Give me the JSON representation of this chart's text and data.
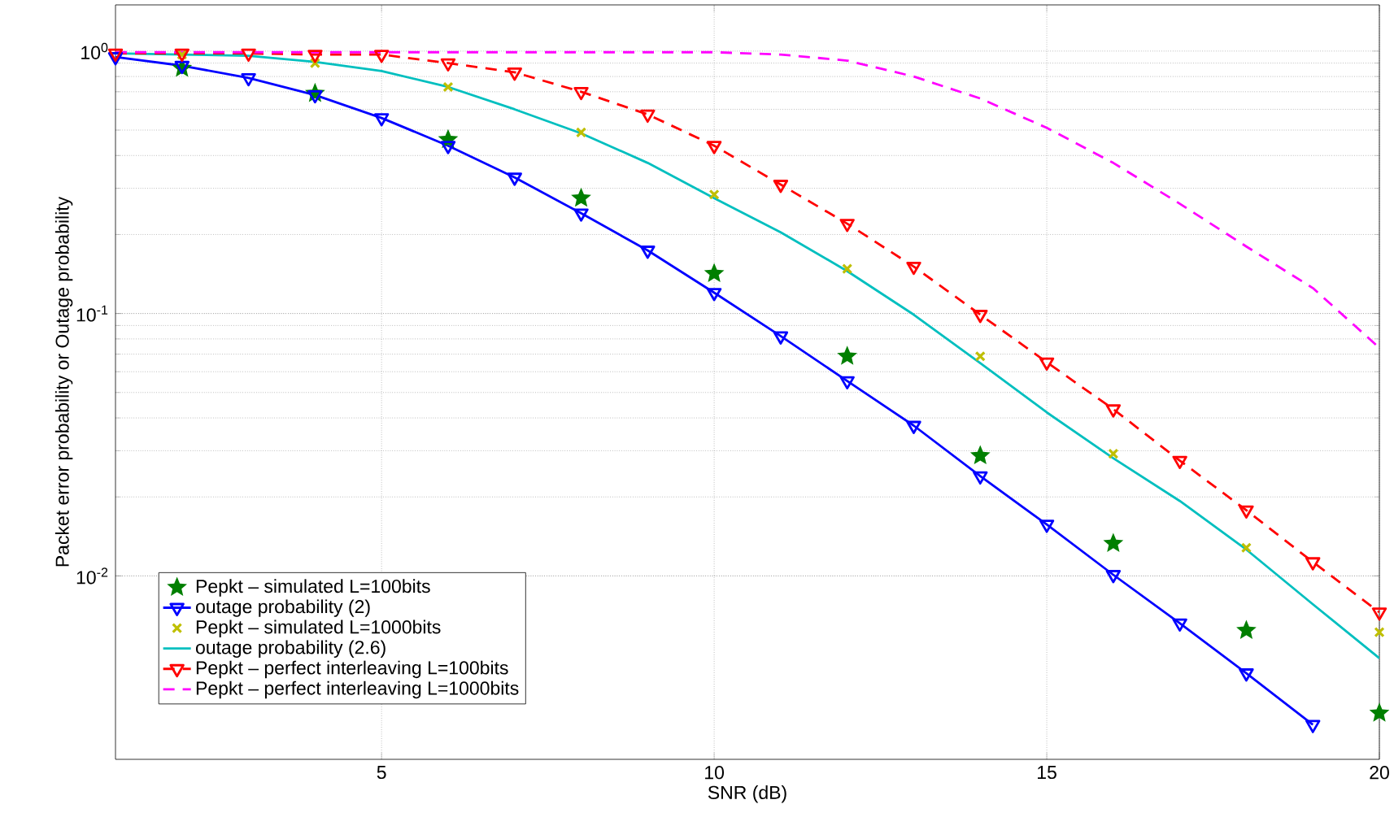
{
  "chart_data": {
    "type": "line",
    "xlabel": "SNR (dB)",
    "ylabel": "Packet error probability or Outage probability",
    "log": "y",
    "grid": true,
    "legend": "bottom left",
    "xlim": [
      1,
      20
    ],
    "xticks": [
      5,
      10,
      15,
      20
    ],
    "ylim": [
      0.002,
      1.5
    ],
    "yticks": [
      {
        "value": 0.01,
        "label": "10$^{-2}$"
      },
      {
        "value": 0.1,
        "label": "10$^{-1}$"
      },
      {
        "value": 1,
        "label": "10$^{0}$"
      }
    ],
    "series": [
      {
        "name": "Pepkt – simulated L=100bits",
        "type": "scatter",
        "marker": "star",
        "color": "#007f00",
        "x": [
          2,
          4,
          6,
          8,
          10,
          12,
          14,
          16,
          18,
          20
        ],
        "values": [
          0.86,
          0.69,
          0.46,
          0.275,
          0.142,
          0.0687,
          0.0287,
          0.0133,
          0.0062,
          0.003
        ]
      },
      {
        "name": "outage probability (2)",
        "type": "line",
        "marker": "triangle",
        "line_style": "solid",
        "color": "#0000ff",
        "x": [
          1,
          2,
          3,
          4,
          5,
          6,
          7,
          8,
          9,
          10,
          11,
          12,
          13,
          14,
          15,
          16,
          17,
          18,
          19
        ],
        "values": [
          0.95,
          0.88,
          0.79,
          0.68,
          0.556,
          0.436,
          0.33,
          0.241,
          0.174,
          0.12,
          0.082,
          0.0553,
          0.0374,
          0.024,
          0.0157,
          0.0101,
          0.0066,
          0.00426,
          0.00271
        ]
      },
      {
        "name": "Pepkt – simulated L=1000bits",
        "type": "scatter",
        "marker": "cross",
        "color": "#bfbf00",
        "x": [
          2,
          4,
          6,
          8,
          10,
          12,
          14,
          16,
          18,
          20
        ],
        "values": [
          0.97,
          0.9,
          0.73,
          0.49,
          0.284,
          0.148,
          0.0687,
          0.0292,
          0.0128,
          0.0061
        ]
      },
      {
        "name": "outage probability (2.6)",
        "type": "line",
        "marker": "none",
        "line_style": "solid",
        "color": "#00bfbf",
        "x": [
          1,
          2,
          3,
          4,
          5,
          6,
          7,
          8,
          9,
          10,
          11,
          12,
          13,
          14,
          15,
          16,
          17,
          18,
          19,
          20
        ],
        "values": [
          0.98,
          0.97,
          0.96,
          0.91,
          0.84,
          0.73,
          0.6,
          0.486,
          0.375,
          0.275,
          0.204,
          0.145,
          0.099,
          0.0647,
          0.042,
          0.0281,
          0.0193,
          0.0126,
          0.0078,
          0.00486
        ]
      },
      {
        "name": "Pepkt – perfect interleaving L=100bits",
        "type": "line",
        "marker": "triangle",
        "line_style": "dashed",
        "color": "#ff0000",
        "x": [
          1,
          2,
          3,
          4,
          5,
          6,
          7,
          8,
          9,
          10,
          11,
          12,
          13,
          14,
          15,
          16,
          17,
          18,
          19,
          20
        ],
        "values": [
          0.98,
          0.98,
          0.98,
          0.97,
          0.97,
          0.9,
          0.83,
          0.7,
          0.574,
          0.436,
          0.31,
          0.22,
          0.151,
          0.099,
          0.0652,
          0.0432,
          0.0275,
          0.0178,
          0.0113,
          0.00727
        ]
      },
      {
        "name": "Pepkt – perfect interleaving L=1000bits",
        "type": "line",
        "marker": "none",
        "line_style": "dashed",
        "color": "#ff00ff",
        "x": [
          1,
          4,
          7,
          10,
          11,
          12,
          13,
          14,
          15,
          16,
          17,
          18,
          19,
          20
        ],
        "values": [
          0.99,
          0.99,
          0.99,
          0.99,
          0.97,
          0.92,
          0.8,
          0.66,
          0.51,
          0.375,
          0.262,
          0.18,
          0.125,
          0.074
        ]
      }
    ]
  }
}
